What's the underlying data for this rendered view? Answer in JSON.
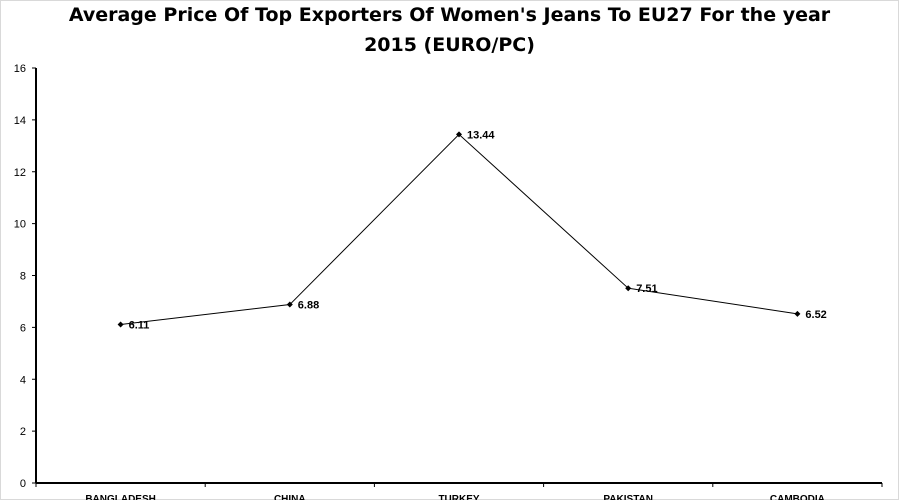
{
  "chart_data": {
    "type": "line",
    "title_line1": "Average Price Of Top Exporters Of Women's Jeans To EU27 For the year",
    "title_line2": "2015 (EURO/PC)",
    "categories": [
      "BANGLADESH",
      "CHINA",
      "TURKEY",
      "PAKISTAN",
      "CAMBODIA"
    ],
    "series": [
      {
        "values": [
          6.11,
          6.88,
          13.44,
          7.51,
          6.52
        ]
      }
    ],
    "y_ticks": [
      0,
      2,
      4,
      6,
      8,
      10,
      12,
      14,
      16
    ],
    "ylim": [
      0,
      16
    ],
    "grid": false,
    "legend": "none",
    "line_color": "#000000"
  }
}
